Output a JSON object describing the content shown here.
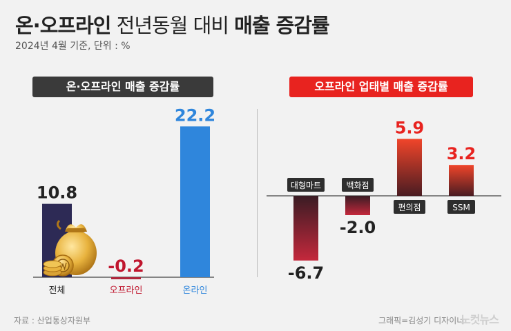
{
  "title_bold": "온·오프라인",
  "title_light": "전년동월 대비",
  "title_bold2": "매출 증감률",
  "subtitle": "2024년 4월 기준, 단위 : %",
  "source": "자료 : 산업통상자원부",
  "credit": "그래픽=김성기 디자이너",
  "logo_text": "노컷뉴스",
  "chart_data": [
    {
      "type": "bar",
      "title": "온·오프라인 매출 증감률",
      "categories": [
        "전체",
        "오프라인",
        "온라인"
      ],
      "values": [
        10.8,
        -0.2,
        22.2
      ],
      "value_labels": [
        "10.8",
        "-0.2",
        "22.2"
      ],
      "colors": [
        "#2d2a55",
        "#b0243a",
        "#2f86dc"
      ],
      "label_colors": [
        "#222222",
        "#c0162e",
        "#2f86dc"
      ],
      "category_label_colors": [
        "#222222",
        "#c0162e",
        "#2f86dc"
      ]
    },
    {
      "type": "bar",
      "title": "오프라인 업태별 매출 증감률",
      "categories": [
        "대형마트",
        "백화점",
        "편의점",
        "SSM"
      ],
      "values": [
        -6.7,
        -2.0,
        5.9,
        3.2
      ],
      "value_labels": [
        "-6.7",
        "-2.0",
        "5.9",
        "3.2"
      ],
      "label_colors": [
        "#222222",
        "#222222",
        "#e8231f",
        "#e8231f"
      ]
    }
  ]
}
